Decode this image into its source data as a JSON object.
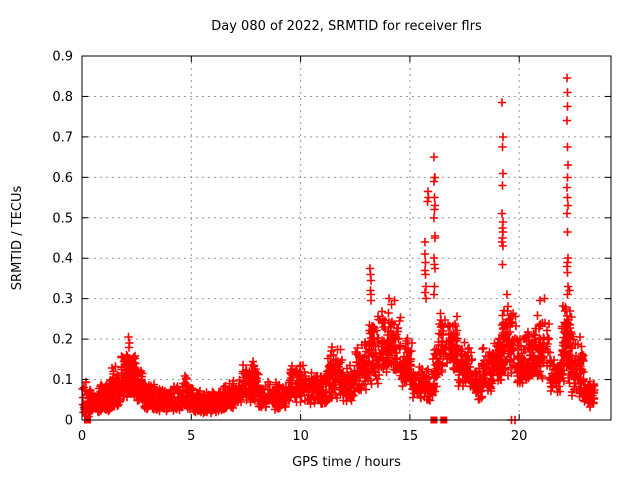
{
  "chart_data": {
    "type": "scatter",
    "title": "Day 080 of 2022, SRMTID for receiver flrs",
    "xlabel": "GPS time / hours",
    "ylabel": "SRMTID / TECUs",
    "xlim": [
      0,
      24.2
    ],
    "ylim": [
      0,
      0.9
    ],
    "xticks": [
      0,
      5,
      10,
      15,
      20
    ],
    "yticks": [
      0,
      0.1,
      0.2,
      0.3,
      0.4,
      0.5,
      0.6,
      0.7,
      0.8,
      0.9
    ],
    "grid": true,
    "legend": "none",
    "marker": "plus",
    "marker_color": "#ff0000",
    "grid_color": "#999999",
    "axis_color": "#000000",
    "background": "#ffffff",
    "bands_format": "[hour_start, hour_end, srmtid_min, srmtid_max, point_count] - dense cloud envelope read from plot",
    "density_bands": [
      [
        0.0,
        0.3,
        0.005,
        0.1,
        28
      ],
      [
        0.3,
        0.8,
        0.01,
        0.085,
        65
      ],
      [
        0.8,
        1.3,
        0.02,
        0.105,
        75
      ],
      [
        1.3,
        1.8,
        0.03,
        0.135,
        85
      ],
      [
        1.8,
        2.1,
        0.05,
        0.175,
        65
      ],
      [
        2.1,
        2.45,
        0.055,
        0.185,
        70
      ],
      [
        2.45,
        2.8,
        0.04,
        0.13,
        55
      ],
      [
        2.8,
        3.3,
        0.025,
        0.105,
        60
      ],
      [
        3.3,
        4.0,
        0.02,
        0.085,
        75
      ],
      [
        4.0,
        4.6,
        0.02,
        0.095,
        65
      ],
      [
        4.6,
        5.1,
        0.02,
        0.115,
        60
      ],
      [
        5.1,
        6.4,
        0.015,
        0.075,
        125
      ],
      [
        6.4,
        6.9,
        0.02,
        0.1,
        55
      ],
      [
        6.9,
        7.3,
        0.03,
        0.115,
        45
      ],
      [
        7.3,
        8.1,
        0.04,
        0.15,
        90
      ],
      [
        8.1,
        9.4,
        0.025,
        0.1,
        120
      ],
      [
        9.4,
        10.3,
        0.04,
        0.155,
        95
      ],
      [
        10.3,
        11.2,
        0.035,
        0.125,
        90
      ],
      [
        11.2,
        11.9,
        0.05,
        0.185,
        85
      ],
      [
        11.9,
        12.5,
        0.045,
        0.145,
        70
      ],
      [
        12.5,
        13.1,
        0.06,
        0.2,
        75
      ],
      [
        13.1,
        13.6,
        0.08,
        0.27,
        75
      ],
      [
        13.6,
        14.6,
        0.1,
        0.285,
        115
      ],
      [
        14.6,
        15.1,
        0.07,
        0.22,
        65
      ],
      [
        15.1,
        15.6,
        0.05,
        0.15,
        50
      ],
      [
        15.6,
        16.05,
        0.04,
        0.13,
        40
      ],
      [
        16.05,
        16.3,
        0.06,
        0.2,
        30
      ],
      [
        16.3,
        17.2,
        0.1,
        0.275,
        105
      ],
      [
        17.2,
        17.9,
        0.08,
        0.2,
        75
      ],
      [
        17.9,
        18.3,
        0.05,
        0.135,
        50
      ],
      [
        18.3,
        18.8,
        0.07,
        0.2,
        60
      ],
      [
        18.8,
        19.2,
        0.09,
        0.22,
        55
      ],
      [
        19.2,
        19.9,
        0.1,
        0.295,
        85
      ],
      [
        19.9,
        20.4,
        0.08,
        0.22,
        65
      ],
      [
        20.4,
        21.4,
        0.1,
        0.275,
        115
      ],
      [
        21.4,
        21.95,
        0.06,
        0.165,
        65
      ],
      [
        21.95,
        22.4,
        0.09,
        0.3,
        85
      ],
      [
        22.4,
        22.95,
        0.05,
        0.22,
        70
      ],
      [
        22.95,
        23.45,
        0.03,
        0.1,
        45
      ]
    ],
    "outlier_points": [
      [
        2.12,
        0.205
      ],
      [
        2.18,
        0.19
      ],
      [
        13.18,
        0.375
      ],
      [
        13.2,
        0.36
      ],
      [
        13.22,
        0.345
      ],
      [
        13.19,
        0.32
      ],
      [
        13.21,
        0.31
      ],
      [
        13.23,
        0.295
      ],
      [
        14.05,
        0.3
      ],
      [
        14.3,
        0.295
      ],
      [
        14.15,
        0.285
      ],
      [
        15.68,
        0.44
      ],
      [
        15.7,
        0.41
      ],
      [
        15.72,
        0.39
      ],
      [
        15.69,
        0.37
      ],
      [
        15.71,
        0.36
      ],
      [
        15.73,
        0.33
      ],
      [
        15.7,
        0.315
      ],
      [
        15.74,
        0.3
      ],
      [
        15.82,
        0.565
      ],
      [
        15.85,
        0.55
      ],
      [
        15.8,
        0.54
      ],
      [
        16.1,
        0.65
      ],
      [
        16.12,
        0.6
      ],
      [
        16.14,
        0.6
      ],
      [
        16.11,
        0.59
      ],
      [
        16.13,
        0.55
      ],
      [
        16.15,
        0.53
      ],
      [
        16.12,
        0.52
      ],
      [
        16.1,
        0.5
      ],
      [
        16.14,
        0.455
      ],
      [
        16.16,
        0.45
      ],
      [
        16.11,
        0.4
      ],
      [
        16.13,
        0.385
      ],
      [
        16.15,
        0.375
      ],
      [
        16.12,
        0.33
      ],
      [
        16.1,
        0.31
      ],
      [
        19.22,
        0.785
      ],
      [
        19.25,
        0.7
      ],
      [
        19.23,
        0.675
      ],
      [
        19.26,
        0.61
      ],
      [
        19.24,
        0.58
      ],
      [
        19.22,
        0.51
      ],
      [
        19.25,
        0.49
      ],
      [
        19.23,
        0.475
      ],
      [
        19.26,
        0.465
      ],
      [
        19.24,
        0.45
      ],
      [
        19.22,
        0.44
      ],
      [
        19.25,
        0.43
      ],
      [
        19.23,
        0.385
      ],
      [
        19.45,
        0.31
      ],
      [
        20.95,
        0.295
      ],
      [
        21.15,
        0.3
      ],
      [
        22.18,
        0.845
      ],
      [
        22.2,
        0.81
      ],
      [
        22.22,
        0.775
      ],
      [
        22.19,
        0.74
      ],
      [
        22.21,
        0.675
      ],
      [
        22.23,
        0.63
      ],
      [
        22.2,
        0.6
      ],
      [
        22.18,
        0.575
      ],
      [
        22.22,
        0.55
      ],
      [
        22.24,
        0.53
      ],
      [
        22.19,
        0.51
      ],
      [
        22.21,
        0.465
      ],
      [
        22.23,
        0.4
      ],
      [
        22.2,
        0.39
      ],
      [
        22.18,
        0.38
      ],
      [
        22.22,
        0.365
      ],
      [
        22.24,
        0.33
      ],
      [
        22.2,
        0.31
      ],
      [
        22.3,
        0.32
      ],
      [
        22.32,
        0.27
      ]
    ],
    "flags_at_zero": {
      "square_hours": [
        0.25,
        16.1,
        16.55
      ],
      "plus_hours": [
        19.65,
        19.8
      ]
    }
  }
}
